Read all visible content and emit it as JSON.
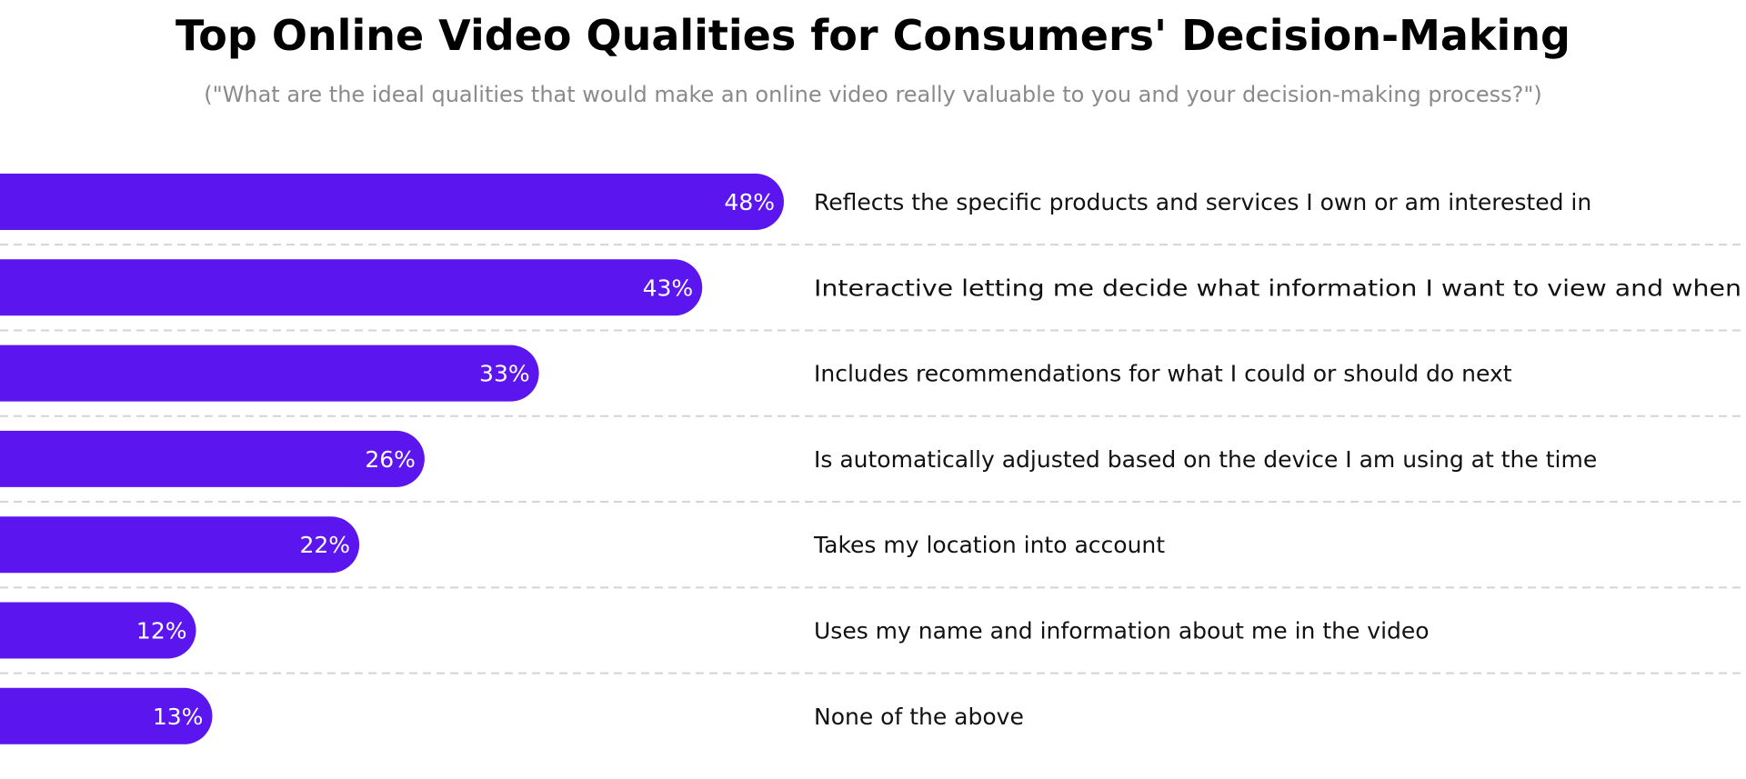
{
  "chart_data": {
    "type": "bar",
    "orientation": "horizontal",
    "title": "Top Online Video Qualities for Consumers' Decision-Making",
    "subtitle": "(\"What are the ideal qualities that would make an online video really valuable to you and your decision-making process?\")",
    "categories": [
      "Reflects the specific products and services I own or am interested in",
      "Interactive letting me decide what information I want to view and when",
      "Includes recommendations for what I could or should do next",
      "Is automatically adjusted based on the device I am using at the time",
      "Takes my location into account",
      "Uses my name and information about me in the video",
      "None of the above"
    ],
    "values": [
      48,
      43,
      33,
      26,
      22,
      12,
      13
    ],
    "value_labels": [
      "48%",
      "43%",
      "33%",
      "26%",
      "22%",
      "12%",
      "13%"
    ],
    "bar_color": "#5b16f0",
    "grid": false,
    "legend": "none"
  }
}
